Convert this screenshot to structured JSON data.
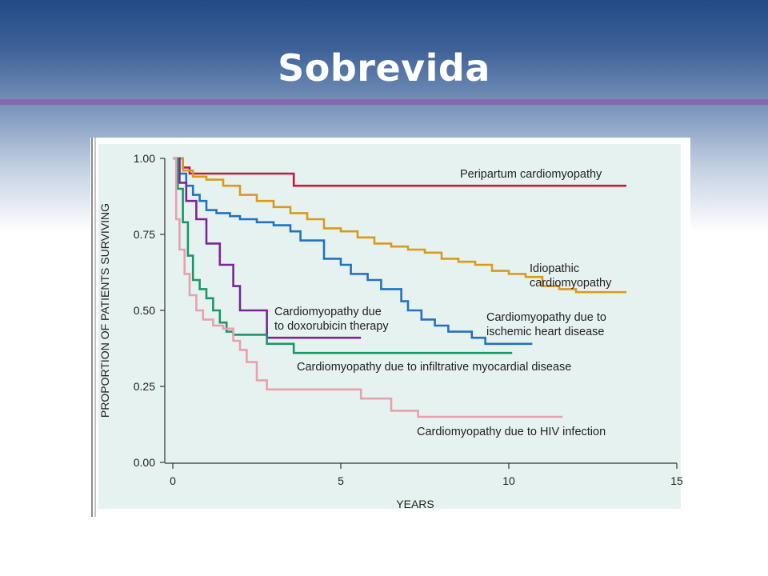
{
  "slide": {
    "title": "Sobrevida"
  },
  "colors": {
    "panel": "#e6f2f0",
    "axis": "#333333",
    "peripartum": "#c8163f",
    "idiopathic": "#d99a1c",
    "ischemic": "#2172c0",
    "doxorubicin": "#7b2596",
    "infiltrative": "#1b9668",
    "hiv": "#e9a0ae"
  },
  "chart_data": {
    "type": "line",
    "step": true,
    "xlabel": "YEARS",
    "ylabel": "PROPORTION OF PATIENTS SURVIVING",
    "xlim": [
      0,
      15
    ],
    "ylim": [
      0,
      1
    ],
    "x_ticks": [
      0,
      5,
      10,
      15
    ],
    "x_tick_labels": [
      "0",
      "5",
      "10",
      "15"
    ],
    "y_ticks": [
      0,
      0.25,
      0.5,
      0.75,
      1
    ],
    "y_tick_labels": [
      "0.00",
      "0.25",
      "0.50",
      "0.75",
      "1.00"
    ],
    "grid": false,
    "series": [
      {
        "key": "peripartum",
        "name": "Peripartum cardiomyopathy",
        "x": [
          0,
          0.3,
          0.5,
          3.6,
          3.6,
          13.5
        ],
        "y": [
          1.0,
          0.97,
          0.95,
          0.95,
          0.91,
          0.91
        ]
      },
      {
        "key": "idiopathic",
        "name": "Idiopathic cardiomyopathy",
        "x": [
          0,
          0.3,
          0.6,
          1.0,
          1.5,
          2.0,
          2.5,
          3.0,
          3.5,
          4.0,
          4.5,
          5.0,
          5.5,
          6.0,
          6.5,
          7.0,
          7.5,
          8.0,
          8.5,
          9.0,
          9.5,
          10.0,
          10.5,
          11.0,
          11.5,
          12.0,
          13.5
        ],
        "y": [
          1.0,
          0.96,
          0.94,
          0.93,
          0.91,
          0.88,
          0.86,
          0.84,
          0.82,
          0.8,
          0.77,
          0.76,
          0.74,
          0.72,
          0.71,
          0.7,
          0.69,
          0.67,
          0.66,
          0.65,
          0.63,
          0.62,
          0.61,
          0.58,
          0.57,
          0.56,
          0.56
        ]
      },
      {
        "key": "ischemic",
        "name": "Cardiomyopathy due to ischemic heart disease",
        "x": [
          0,
          0.2,
          0.4,
          0.6,
          0.8,
          1.0,
          1.3,
          1.7,
          2.0,
          2.5,
          3.0,
          3.5,
          3.8,
          4.5,
          5.0,
          5.3,
          5.8,
          6.2,
          6.8,
          7.0,
          7.4,
          7.8,
          8.2,
          8.9,
          9.3,
          10.0,
          10.7
        ],
        "y": [
          1.0,
          0.95,
          0.91,
          0.88,
          0.86,
          0.83,
          0.82,
          0.81,
          0.8,
          0.79,
          0.78,
          0.76,
          0.73,
          0.67,
          0.65,
          0.62,
          0.6,
          0.57,
          0.53,
          0.5,
          0.47,
          0.45,
          0.43,
          0.41,
          0.39,
          0.39,
          0.39
        ]
      },
      {
        "key": "doxorubicin",
        "name": "Cardiomyopathy due to doxorubicin therapy",
        "x": [
          0,
          0.2,
          0.4,
          0.7,
          1.0,
          1.4,
          1.8,
          2.0,
          2.8,
          5.6
        ],
        "y": [
          1.0,
          0.92,
          0.86,
          0.8,
          0.72,
          0.65,
          0.58,
          0.5,
          0.41,
          0.41
        ]
      },
      {
        "key": "infiltrative",
        "name": "Cardiomyopathy due to infiltrative myocardial disease",
        "x": [
          0,
          0.15,
          0.3,
          0.45,
          0.6,
          0.8,
          1.0,
          1.2,
          1.4,
          1.6,
          1.8,
          2.0,
          2.3,
          2.8,
          3.6,
          10.1
        ],
        "y": [
          1.0,
          0.9,
          0.79,
          0.68,
          0.6,
          0.57,
          0.54,
          0.5,
          0.46,
          0.43,
          0.42,
          0.42,
          0.42,
          0.39,
          0.36,
          0.36
        ]
      },
      {
        "key": "hiv",
        "name": "Cardiomyopathy due to HIV infection",
        "x": [
          0,
          0.1,
          0.2,
          0.35,
          0.5,
          0.7,
          0.9,
          1.2,
          1.5,
          1.8,
          2.0,
          2.2,
          2.5,
          2.8,
          3.0,
          5.6,
          6.5,
          7.3,
          11.6
        ],
        "y": [
          1.0,
          0.8,
          0.7,
          0.62,
          0.55,
          0.5,
          0.47,
          0.45,
          0.44,
          0.4,
          0.37,
          0.33,
          0.27,
          0.24,
          0.24,
          0.21,
          0.17,
          0.15,
          0.15
        ]
      }
    ],
    "annotations": [
      {
        "key": "peripartum",
        "lines": [
          "Peripartum cardiomyopathy"
        ]
      },
      {
        "key": "idiopathic",
        "lines": [
          "Idiopathic",
          "cardiomyopathy"
        ]
      },
      {
        "key": "ischemic",
        "lines": [
          "Cardiomyopathy due to",
          "ischemic heart disease"
        ]
      },
      {
        "key": "doxorubicin",
        "lines": [
          "Cardiomyopathy due",
          "to doxorubicin therapy"
        ]
      },
      {
        "key": "infiltrative",
        "lines": [
          "Cardiomyopathy due to infiltrative myocardial disease"
        ]
      },
      {
        "key": "hiv",
        "lines": [
          "Cardiomyopathy due to HIV infection"
        ]
      }
    ]
  }
}
